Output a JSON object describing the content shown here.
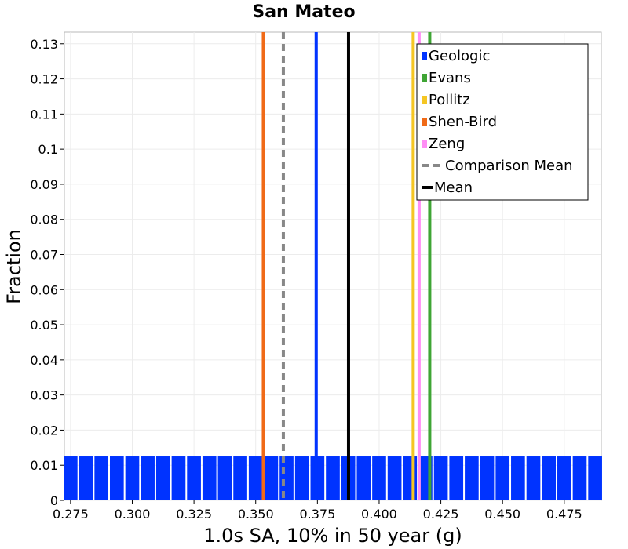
{
  "chart_data": {
    "type": "bar",
    "stacked": true,
    "title": "San Mateo",
    "xlabel": "1.0s SA, 10% in 50 year (g)",
    "ylabel": "Fraction",
    "xlim": [
      0.2725,
      0.49
    ],
    "ylim": [
      0,
      0.1333
    ],
    "grid": true,
    "legend_position": "top-right",
    "bin_width": 0.00625,
    "x_ticks": [
      0.275,
      0.3,
      0.325,
      0.35,
      0.375,
      0.4,
      0.425,
      0.45,
      0.475
    ],
    "x_tick_labels": [
      "0.275",
      "0.300",
      "0.325",
      "0.350",
      "0.375",
      "0.400",
      "0.425",
      "0.450",
      "0.475"
    ],
    "y_ticks": [
      0,
      0.01,
      0.02,
      0.03,
      0.04,
      0.05,
      0.06,
      0.07,
      0.08,
      0.09,
      0.1,
      0.11,
      0.12,
      0.13
    ],
    "y_tick_labels": [
      "0",
      "0.01",
      "0.02",
      "0.03",
      "0.04",
      "0.05",
      "0.06",
      "0.07",
      "0.08",
      "0.09",
      "0.1",
      "0.11",
      "0.12",
      "0.13"
    ],
    "bins": [
      0.275,
      0.28125,
      0.2875,
      0.29375,
      0.3,
      0.30625,
      0.3125,
      0.31875,
      0.325,
      0.33125,
      0.3375,
      0.34375,
      0.35,
      0.35625,
      0.3625,
      0.36875,
      0.375,
      0.38125,
      0.3875,
      0.39375,
      0.4,
      0.40625,
      0.4125,
      0.41875,
      0.425,
      0.43125,
      0.4375,
      0.44375,
      0.45,
      0.45625,
      0.4625,
      0.46875,
      0.475,
      0.48125,
      0.4875
    ],
    "series": [
      {
        "name": "Geologic",
        "color": "#0033ff",
        "values": [
          0.0125,
          0.0125,
          0.0125,
          0.0125,
          0.0125,
          0.0125,
          0.0125,
          0.0125,
          0.0125,
          0.0125,
          0.0125,
          0.0125,
          0.0125,
          0.0125,
          0.0125,
          0.0125,
          0.0125,
          0.0125,
          0.0125,
          0.0125,
          0.0125,
          0.0125,
          0.0125,
          0.0125,
          0.0125,
          0.0125,
          0.0125,
          0.0125,
          0.0125,
          0.0125,
          0.0125,
          0.0125,
          0.0125,
          0.0125,
          0.0125
        ]
      },
      {
        "name": "Evans",
        "color": "#3fa535",
        "values": [
          0,
          0,
          0,
          0,
          0,
          0,
          0,
          0,
          0,
          0,
          0,
          0,
          0,
          0,
          0,
          0,
          0,
          0,
          0,
          0,
          0,
          0,
          0,
          0,
          0,
          0,
          0,
          0,
          0,
          0,
          0,
          0,
          0,
          0,
          0
        ]
      },
      {
        "name": "Pollitz",
        "color": "#f5c623",
        "values": [
          0,
          0,
          0,
          0,
          0,
          0,
          0,
          0,
          0,
          0,
          0,
          0,
          0,
          0,
          0,
          0,
          0,
          0,
          0,
          0,
          0,
          0,
          0,
          0,
          0,
          0,
          0,
          0,
          0,
          0,
          0,
          0,
          0,
          0,
          0
        ]
      },
      {
        "name": "Shen-Bird",
        "color": "#f06a17",
        "values": [
          0,
          0,
          0,
          0,
          0,
          0,
          0,
          0,
          0,
          0,
          0,
          0,
          0,
          0,
          0,
          0,
          0,
          0,
          0,
          0,
          0,
          0,
          0,
          0,
          0,
          0,
          0,
          0,
          0,
          0,
          0,
          0,
          0,
          0,
          0
        ]
      },
      {
        "name": "Zeng",
        "color": "#ff8ef5",
        "values": [
          0,
          0,
          0,
          0,
          0,
          0,
          0,
          0,
          0,
          0,
          0,
          0,
          0,
          0,
          0,
          0,
          0,
          0,
          0,
          0,
          0,
          0,
          0,
          0,
          0,
          0,
          0,
          0,
          0,
          0,
          0,
          0,
          0,
          0,
          0
        ]
      }
    ],
    "vertical_lines": [
      {
        "series": "Geologic",
        "x": 0.3745,
        "color": "#0033ff",
        "style": "solid"
      },
      {
        "series": "Evans",
        "x": 0.4205,
        "color": "#3fa535",
        "style": "solid"
      },
      {
        "series": "Pollitz",
        "x": 0.4138,
        "color": "#f5c623",
        "style": "solid"
      },
      {
        "series": "Shen-Bird",
        "x": 0.3531,
        "color": "#f06a17",
        "style": "solid"
      },
      {
        "series": "Zeng",
        "x": 0.4162,
        "color": "#ff8ef5",
        "style": "solid"
      },
      {
        "series": "Comparison Mean",
        "x": 0.3612,
        "color": "#888888",
        "style": "dashed"
      },
      {
        "series": "Mean",
        "x": 0.3876,
        "color": "#000000",
        "style": "solid"
      }
    ],
    "legend": [
      {
        "label": "Geologic",
        "color": "#0033ff",
        "kind": "box"
      },
      {
        "label": "Evans",
        "color": "#3fa535",
        "kind": "box"
      },
      {
        "label": "Pollitz",
        "color": "#f5c623",
        "kind": "box"
      },
      {
        "label": "Shen-Bird",
        "color": "#f06a17",
        "kind": "box"
      },
      {
        "label": "Zeng",
        "color": "#ff8ef5",
        "kind": "box"
      },
      {
        "label": "Comparison Mean",
        "color": "#888888",
        "kind": "dash"
      },
      {
        "label": "Mean",
        "color": "#000000",
        "kind": "line"
      }
    ]
  }
}
